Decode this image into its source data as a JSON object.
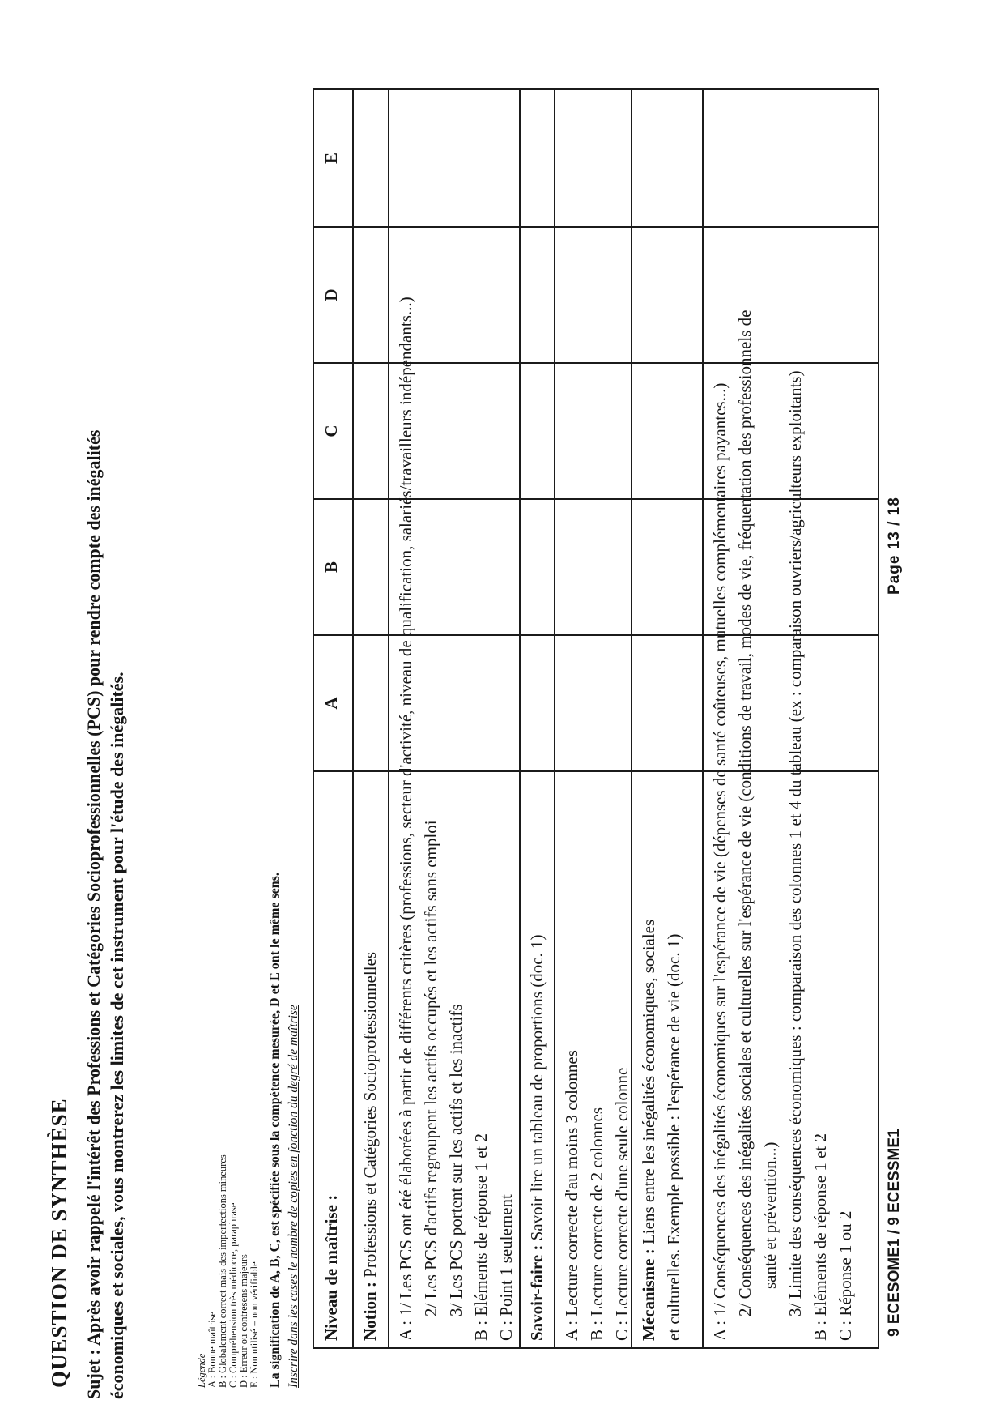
{
  "document": {
    "title": "QUESTION DE SYNTHÈSE",
    "subject": [
      "Sujet : Après avoir rappelé l'intérêt des Professions et Catégories Socioprofessionnelles (PCS) pour rendre compte des inégalités",
      "économiques et sociales, vous montrerez les limites de cet instrument pour l'étude des inégalités."
    ],
    "legend": {
      "heading": "Légende",
      "items": [
        "A : Bonne maîtrise",
        "B : Globalement correct mais des imperfections mineures",
        "C : Compréhension très médiocre, paraphrase",
        "D : Erreur ou contresens majeurs",
        "E : Non utilisé = non vérifiable"
      ]
    },
    "note_bold": "La signification de A, B, C, est spécifiée sous la compétence mesurée, D et E ont le même sens.",
    "note_italic": "Inscrire dans les cases le nombre de copies en fonction du degré de maîtrise"
  },
  "table": {
    "header_label": "Niveau de maîtrise :",
    "columns": [
      "A",
      "B",
      "C",
      "D",
      "E"
    ],
    "rows": [
      {
        "id": "notion",
        "lines": [
          {
            "prefix": "Notion :",
            "text": " Professions et Catégories Socioprofessionnelles",
            "indent": 0
          }
        ]
      },
      {
        "id": "notion-grades",
        "lines": [
          {
            "prefix": "",
            "text": "A : 1/ Les PCS ont été élaborées à partir de différents critères (professions, secteur d'activité, niveau de qualification, salariés/travailleurs indépendants...)",
            "indent": 0
          },
          {
            "prefix": "",
            "text": "2/ Les PCS d'actifs regroupent les actifs occupés et les actifs sans emploi",
            "indent": 1
          },
          {
            "prefix": "",
            "text": "3/ Les PCS portent sur les actifs et les inactifs",
            "indent": 1
          },
          {
            "prefix": "",
            "text": "B : Eléments de réponse 1 et 2",
            "indent": 0
          },
          {
            "prefix": "",
            "text": "C : Point 1 seulement",
            "indent": 0
          }
        ]
      },
      {
        "id": "savoir-faire",
        "lines": [
          {
            "prefix": "Savoir-faire :",
            "text": " Savoir lire un tableau de proportions (doc. 1)",
            "indent": 0
          }
        ]
      },
      {
        "id": "savoir-grades",
        "lines": [
          {
            "prefix": "",
            "text": "A : Lecture correcte d'au moins 3 colonnes",
            "indent": 0
          },
          {
            "prefix": "",
            "text": "B : Lecture correcte de 2 colonnes",
            "indent": 0
          },
          {
            "prefix": "",
            "text": "C : Lecture correcte d'une seule colonne",
            "indent": 0
          }
        ]
      },
      {
        "id": "mecanisme",
        "lines": [
          {
            "prefix": "Mécanisme :",
            "text": " Liens entre les inégalités économiques, sociales",
            "indent": 0
          },
          {
            "prefix": "",
            "text": "et culturelles. Exemple possible : l'espérance de vie (doc. 1)",
            "indent": 0
          }
        ]
      },
      {
        "id": "mecanisme-grades",
        "lines": [
          {
            "prefix": "",
            "text": "A : 1/ Conséquences des inégalités économiques sur l'espérance de vie (dépenses de santé coûteuses, mutuelles complémentaires payantes...)",
            "indent": 0
          },
          {
            "prefix": "",
            "text": "2/ Conséquences des inégalités sociales et culturelles sur l'espérance de vie (conditions de travail, modes de vie, fréquentation des professionnels de",
            "indent": 1
          },
          {
            "prefix": "",
            "text": "santé et prévention...)",
            "indent": 2
          },
          {
            "prefix": "",
            "text": "3/ Limite des conséquences économiques : comparaison des colonnes 1 et 4 du tableau (ex : comparaison ouvriers/agriculteurs exploitants)",
            "indent": 1
          },
          {
            "prefix": "",
            "text": "B : Eléments de réponse 1 et 2",
            "indent": 0
          },
          {
            "prefix": "",
            "text": "C : Réponse 1 ou 2",
            "indent": 0
          }
        ]
      }
    ]
  },
  "footer": {
    "left": "9 ECESOME1 / 9 ECESSME1",
    "right": "Page 13 / 18"
  }
}
